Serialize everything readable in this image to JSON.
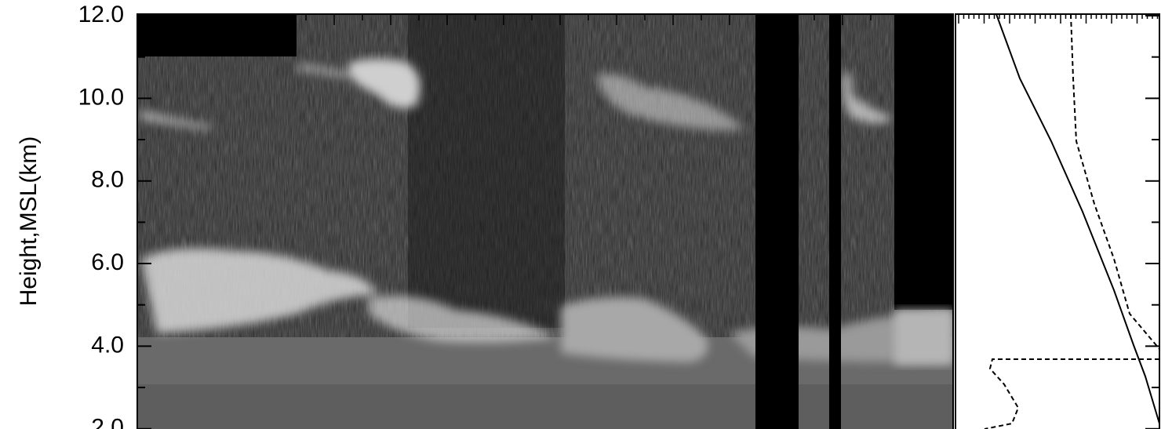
{
  "chart_data": {
    "type": "image",
    "y_label": "Height,MSL(km)",
    "ylim": [
      1.9,
      12.0
    ],
    "yticks": [
      {
        "value": 2,
        "label": "2.0"
      },
      {
        "value": 4,
        "label": "4.0"
      },
      {
        "value": 6,
        "label": "6.0"
      },
      {
        "value": 8,
        "label": "8.0"
      },
      {
        "value": 10,
        "label": "10.0"
      },
      {
        "value": 12,
        "label": "12.0"
      }
    ],
    "yticks_minor": [
      3,
      5,
      7,
      9,
      11
    ]
  }
}
